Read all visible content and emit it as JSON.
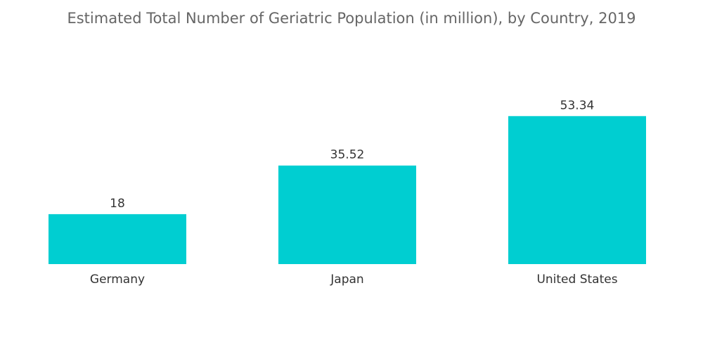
{
  "chart_data": {
    "type": "bar",
    "title": "Estimated Total Number of Geriatric Population (in million), by Country, 2019",
    "categories": [
      "Germany",
      "Japan",
      "United States"
    ],
    "values": [
      18,
      35.52,
      53.34
    ],
    "value_labels": [
      "18",
      "35.52",
      "53.34"
    ],
    "ylim": [
      0,
      60
    ],
    "grid": false,
    "legend": "none",
    "bar_color": "#00ced1"
  }
}
